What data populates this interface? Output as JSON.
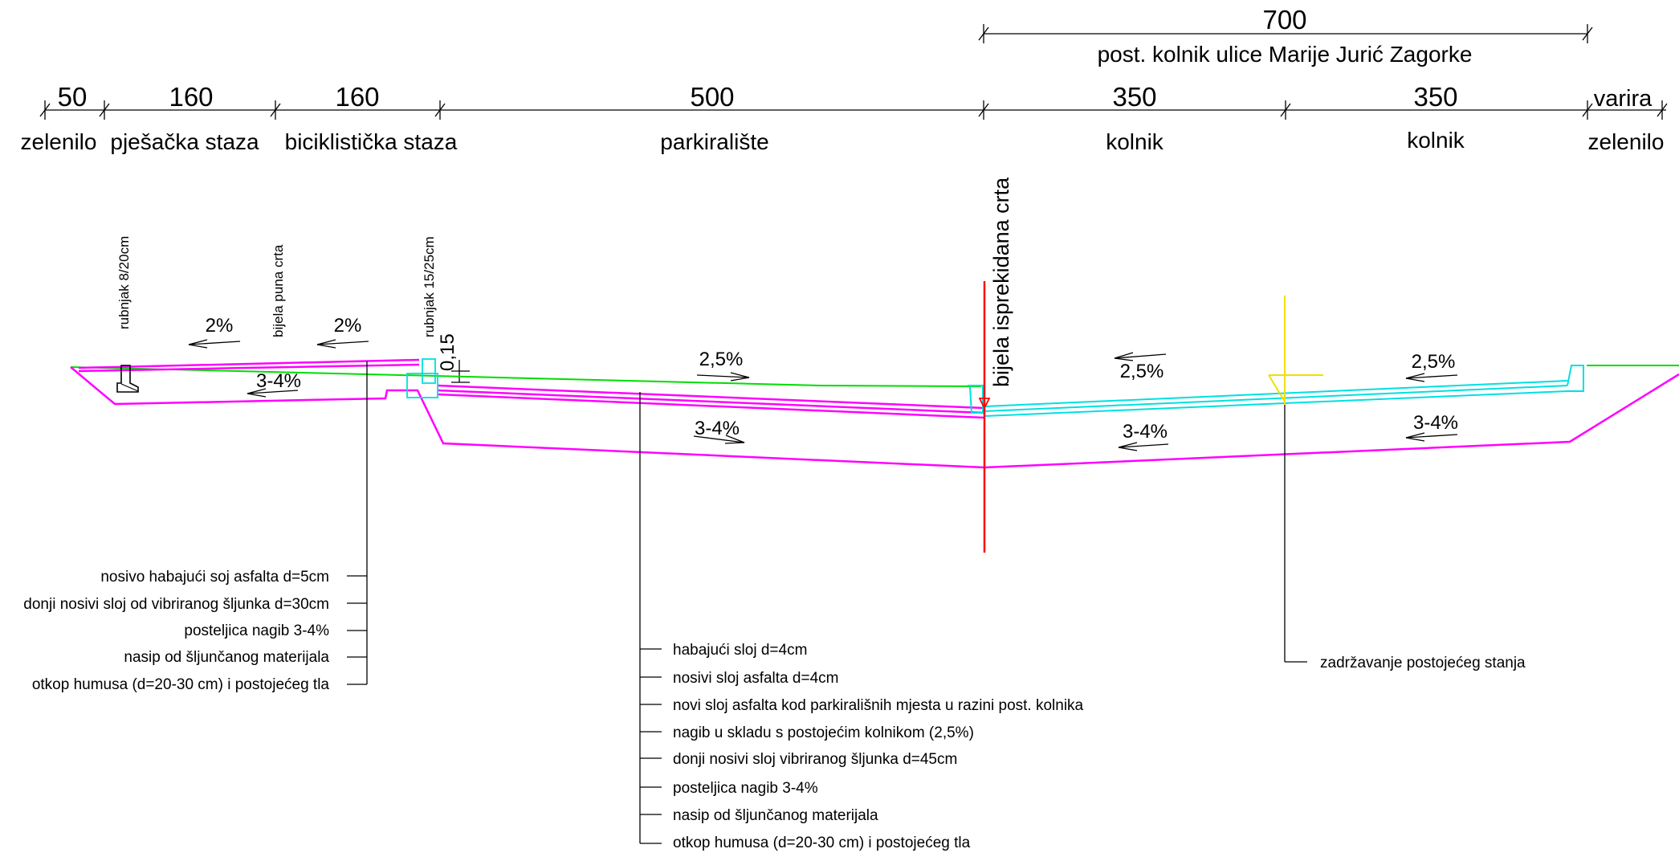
{
  "dimensions": {
    "top_total": "700",
    "top_title": "post. kolnik ulice Marije Jurić Zagorke",
    "segments": [
      "50",
      "160",
      "160",
      "500",
      "350",
      "350",
      "varira"
    ]
  },
  "zones": [
    "zelenilo",
    "pješačka staza",
    "biciklistička staza",
    "parkiralište",
    "kolnik",
    "kolnik",
    "zelenilo"
  ],
  "section_labels": {
    "curb_small": "rubnjak 8/20cm",
    "white_solid_line": "bijela puna crta",
    "curb_large": "rubnjak 15/25cm",
    "curb_height": "0,15",
    "white_dashed_line": "bijela isprekidana crta"
  },
  "slopes": {
    "walk": "2%",
    "bike": "2%",
    "walk_base": "3-4%",
    "parking": "2,5%",
    "parking_base": "3-4%",
    "lane1": "2,5%",
    "lane1_base": "3-4%",
    "lane2": "2,5%",
    "lane2_base": "3-4%"
  },
  "legend_left": [
    "nosivo habajući soj asfalta d=5cm",
    "donji nosivi sloj od vibriranog šljunka d=30cm",
    "posteljica nagib 3-4%",
    "nasip od šljunčanog materijala",
    "otkop humusa (d=20-30 cm) i postojećeg tla"
  ],
  "legend_middle": [
    "habajući sloj d=4cm",
    "nosivi sloj asfalta  d=4cm",
    "novi sloj asfalta kod parkirališnih mjesta u razini post. kolnika",
    "nagib u skladu s postojećim kolnikom (2,5%)",
    "donji nosivi sloj vibriranog šljunka d=45cm",
    "posteljica nagib 3-4%",
    "nasip od šljunčanog materijala",
    "otkop humusa (d=20-30 cm) i postojećeg tla"
  ],
  "legend_right": [
    "zadržavanje postojećeg stanja"
  ],
  "colors": {
    "existing_ground": "#00dd00",
    "new_structure": "#ff00ff",
    "existing_road": "#00e0e0",
    "axis": "#ff0000",
    "retained": "#f0e000"
  }
}
